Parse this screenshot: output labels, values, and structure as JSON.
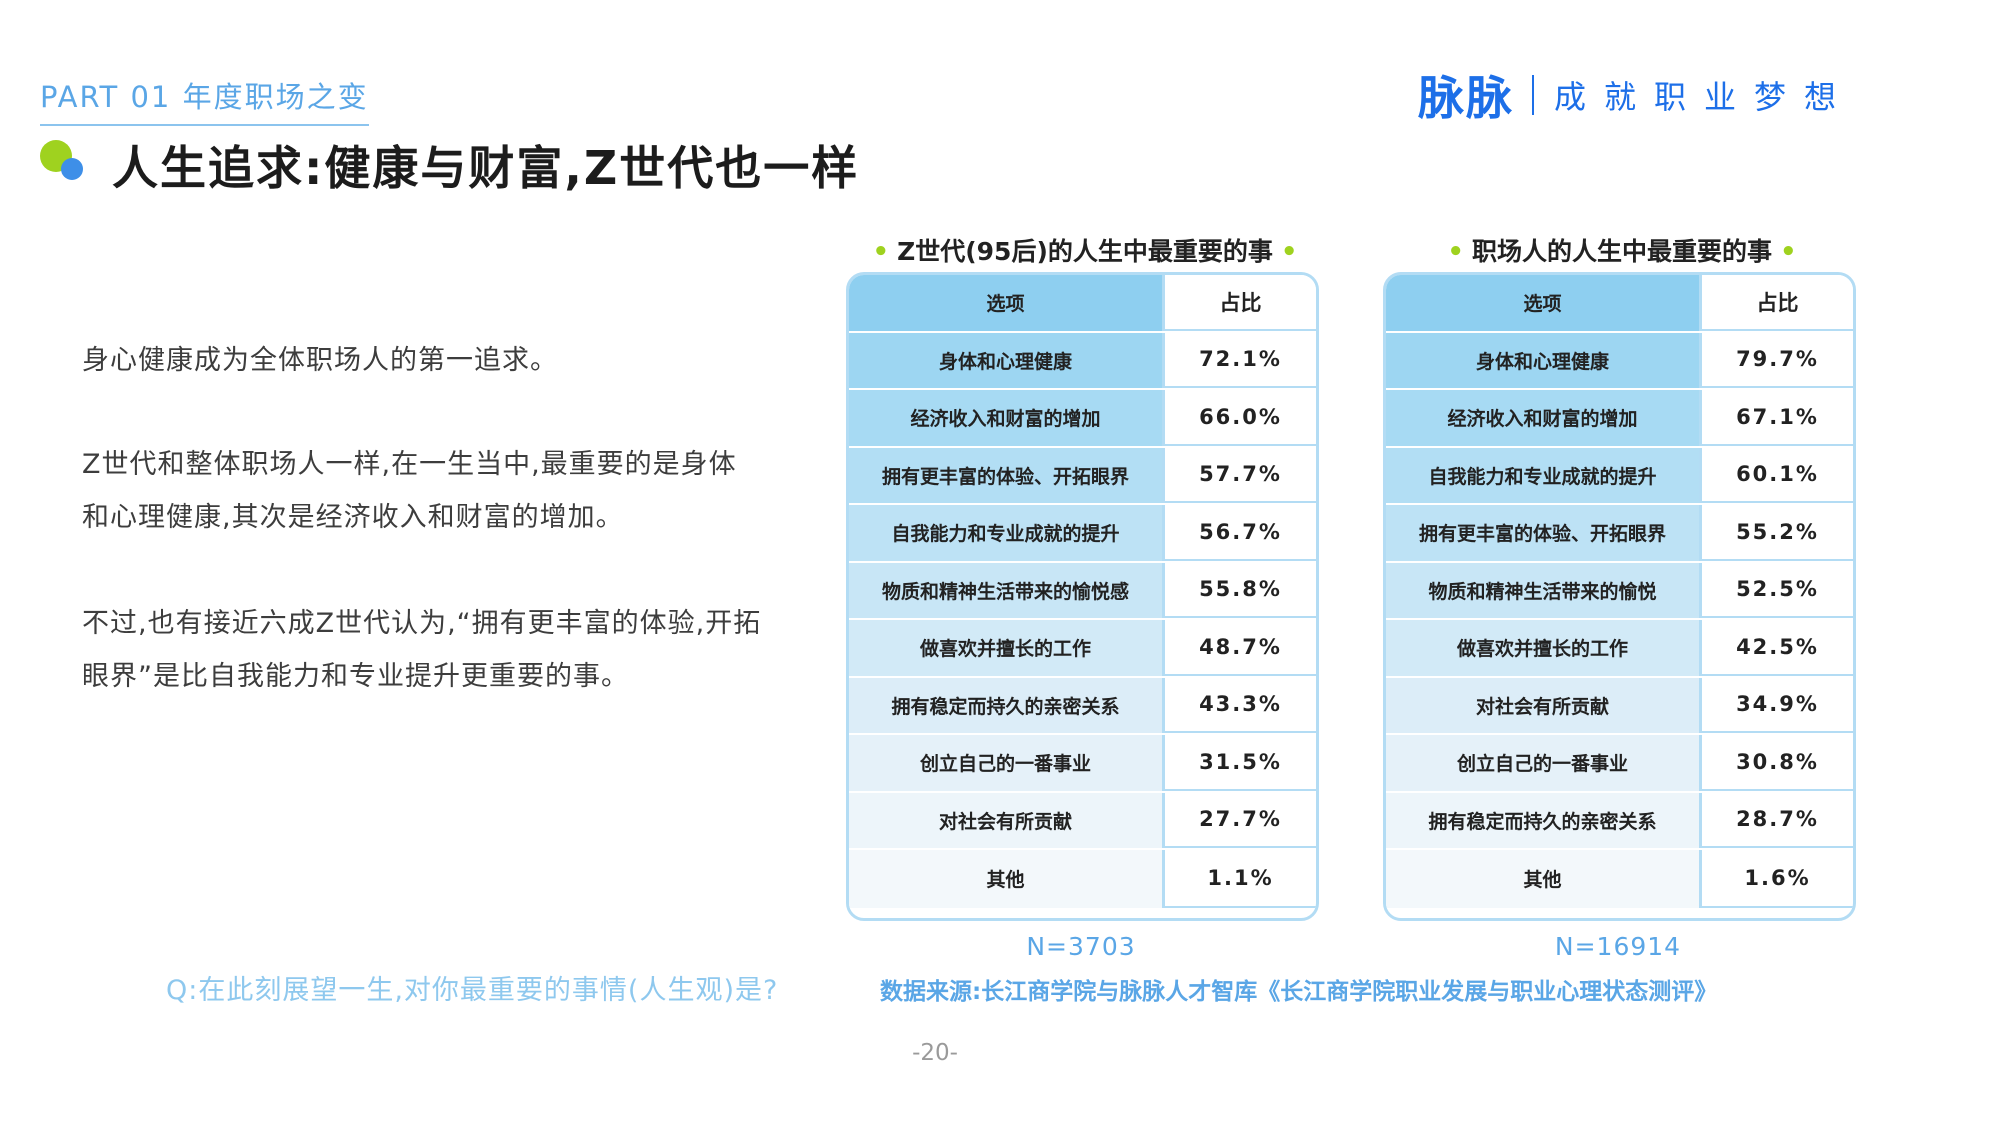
{
  "header": {
    "part_label": "PART 01 年度职场之变",
    "brand_logo": "脉脉",
    "brand_slogan": "成就职业梦想",
    "title": "人生追求:健康与财富,Z世代也一样"
  },
  "body": {
    "paragraphs": [
      "身心健康成为全体职场人的第一追求。",
      "Z世代和整体职场人一样,在一生当中,最重要的是身体和心理健康,其次是经济收入和财富的增加。",
      "不过,也有接近六成Z世代认为,“拥有更丰富的体验,开拓眼界”是比自我能力和专业提升更重要的事。"
    ]
  },
  "tables": [
    {
      "title": "Z世代(95后)的人生中最重要的事",
      "header_option": "选项",
      "header_value": "占比",
      "rows": [
        {
          "option": "身体和心理健康",
          "value": "72.1%"
        },
        {
          "option": "经济收入和财富的增加",
          "value": "66.0%"
        },
        {
          "option": "拥有更丰富的体验、开拓眼界",
          "value": "57.7%"
        },
        {
          "option": "自我能力和专业成就的提升",
          "value": "56.7%"
        },
        {
          "option": "物质和精神生活带来的愉悦感",
          "value": "55.8%"
        },
        {
          "option": "做喜欢并擅长的工作",
          "value": "48.7%"
        },
        {
          "option": "拥有稳定而持久的亲密关系",
          "value": "43.3%"
        },
        {
          "option": "创立自己的一番事业",
          "value": "31.5%"
        },
        {
          "option": "对社会有所贡献",
          "value": "27.7%"
        },
        {
          "option": "其他",
          "value": "1.1%"
        }
      ],
      "n": "N=3703"
    },
    {
      "title": "职场人的人生中最重要的事",
      "header_option": "选项",
      "header_value": "占比",
      "rows": [
        {
          "option": "身体和心理健康",
          "value": "79.7%"
        },
        {
          "option": "经济收入和财富的增加",
          "value": "67.1%"
        },
        {
          "option": "自我能力和专业成就的提升",
          "value": "60.1%"
        },
        {
          "option": "拥有更丰富的体验、开拓眼界",
          "value": "55.2%"
        },
        {
          "option": "物质和精神生活带来的愉悦",
          "value": "52.5%"
        },
        {
          "option": "做喜欢并擅长的工作",
          "value": "42.5%"
        },
        {
          "option": "对社会有所贡献",
          "value": "34.9%"
        },
        {
          "option": "创立自己的一番事业",
          "value": "30.8%"
        },
        {
          "option": "拥有稳定而持久的亲密关系",
          "value": "28.7%"
        },
        {
          "option": "其他",
          "value": "1.6%"
        }
      ],
      "n": "N=16914"
    }
  ],
  "footer": {
    "question": "Q:在此刻展望一生,对你最重要的事情(人生观)是?",
    "source": "数据来源:长江商学院与脉脉人才智库《长江商学院职业发展与职业心理状态测评》",
    "page_number": "-20-"
  },
  "colors": {
    "accent_blue": "#1d6fe8",
    "light_blue": "#5aa6e6",
    "green": "#9fd21f",
    "table_border": "#b3dcf4"
  }
}
